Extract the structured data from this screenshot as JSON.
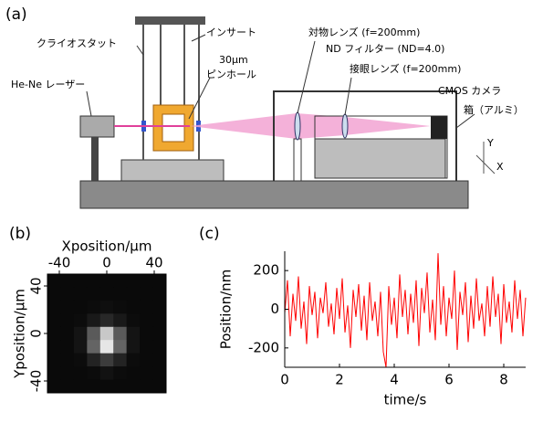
{
  "panels": {
    "a": "(a)",
    "b": "(b)",
    "c": "(c)"
  },
  "diagram": {
    "labels": {
      "cryostat": "クライオスタット",
      "insert": "インサート",
      "pinhole_size": "30μm",
      "pinhole": "ピンホール",
      "laser": "He-Ne レーザー",
      "objective": "対物レンズ (f=200mm)",
      "nd_filter": "ND フィルター (ND=4.0)",
      "eyepiece": "接眼レンズ (f=200mm)",
      "camera": "CMOS カメラ",
      "box": "箱（アルミ）",
      "axis_y": "Y",
      "axis_x": "X"
    }
  },
  "chart_data": [
    {
      "type": "heatmap",
      "xlabel": "Xposition/μm",
      "ylabel": "Yposition/μm",
      "xlim": [
        -50,
        50
      ],
      "ylim": [
        -50,
        50
      ],
      "xticks": [
        -40,
        0,
        40
      ],
      "yticks": [
        40,
        0,
        -40
      ],
      "x": [
        -44.4,
        -33.3,
        -22.2,
        -11.1,
        0,
        11.1,
        22.2,
        33.3,
        44.4
      ],
      "y": [
        44.4,
        33.3,
        22.2,
        11.1,
        0,
        -11.1,
        -22.2,
        -33.3,
        -44.4
      ],
      "values": [
        [
          10,
          10,
          10,
          10,
          10,
          10,
          10,
          10,
          10
        ],
        [
          10,
          10,
          10,
          10,
          10,
          10,
          10,
          10,
          10
        ],
        [
          10,
          10,
          10,
          12,
          15,
          12,
          10,
          10,
          10
        ],
        [
          10,
          10,
          12,
          25,
          40,
          25,
          12,
          10,
          10
        ],
        [
          10,
          10,
          20,
          90,
          200,
          90,
          20,
          10,
          10
        ],
        [
          10,
          10,
          20,
          100,
          230,
          100,
          20,
          10,
          10
        ],
        [
          10,
          10,
          12,
          35,
          60,
          35,
          12,
          10,
          10
        ],
        [
          10,
          10,
          10,
          12,
          18,
          12,
          10,
          10,
          10
        ],
        [
          10,
          10,
          10,
          10,
          10,
          10,
          10,
          10,
          10
        ]
      ]
    },
    {
      "type": "line",
      "xlabel": "time/s",
      "ylabel": "Position/nm",
      "color": "#ff0000",
      "xlim": [
        0,
        8.8
      ],
      "ylim": [
        -300,
        300
      ],
      "xticks": [
        0,
        2,
        4,
        6,
        8
      ],
      "yticks": [
        200,
        0,
        -200
      ],
      "x": [
        0,
        0.1,
        0.2,
        0.3,
        0.4,
        0.5,
        0.6,
        0.7,
        0.8,
        0.9,
        1.0,
        1.1,
        1.2,
        1.3,
        1.4,
        1.5,
        1.6,
        1.7,
        1.8,
        1.9,
        2.0,
        2.1,
        2.2,
        2.3,
        2.4,
        2.5,
        2.6,
        2.7,
        2.8,
        2.9,
        3.0,
        3.1,
        3.2,
        3.3,
        3.4,
        3.5,
        3.6,
        3.7,
        3.8,
        3.9,
        4.0,
        4.1,
        4.2,
        4.3,
        4.4,
        4.5,
        4.6,
        4.7,
        4.8,
        4.9,
        5.0,
        5.1,
        5.2,
        5.3,
        5.4,
        5.5,
        5.6,
        5.7,
        5.8,
        5.9,
        6.0,
        6.1,
        6.2,
        6.3,
        6.4,
        6.5,
        6.6,
        6.7,
        6.8,
        6.9,
        7.0,
        7.1,
        7.2,
        7.3,
        7.4,
        7.5,
        7.6,
        7.7,
        7.8,
        7.9,
        8.0,
        8.1,
        8.2,
        8.3,
        8.4,
        8.5,
        8.6,
        8.7,
        8.8
      ],
      "values": [
        -20,
        150,
        -140,
        80,
        -60,
        170,
        -100,
        40,
        -180,
        120,
        -30,
        90,
        -150,
        60,
        -20,
        140,
        -90,
        30,
        -130,
        110,
        -50,
        160,
        -120,
        20,
        -200,
        100,
        -40,
        130,
        -110,
        70,
        -160,
        140,
        -60,
        40,
        -140,
        90,
        -220,
        -300,
        120,
        -80,
        60,
        -150,
        180,
        -40,
        100,
        -130,
        80,
        -70,
        150,
        -190,
        110,
        -20,
        190,
        -120,
        50,
        -160,
        290,
        -80,
        120,
        -140,
        60,
        -50,
        200,
        -210,
        90,
        -30,
        140,
        -170,
        70,
        -100,
        160,
        -60,
        30,
        -140,
        120,
        -90,
        170,
        -40,
        80,
        -180,
        130,
        -70,
        40,
        -120,
        150,
        -50,
        100,
        -140,
        60
      ]
    }
  ]
}
